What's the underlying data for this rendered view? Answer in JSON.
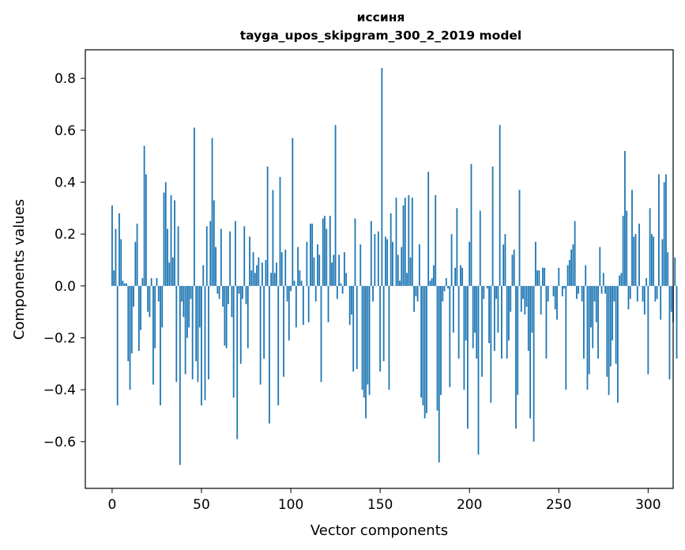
{
  "chart_data": {
    "type": "bar",
    "title": "иссиня",
    "subtitle": "tayga_upos_skipgram_300_2_2019 model",
    "xlabel": "Vector components",
    "ylabel": "Components values",
    "xlim": [
      -15,
      314
    ],
    "ylim": [
      -0.78,
      0.91
    ],
    "xticks": [
      0,
      50,
      100,
      150,
      200,
      250,
      300
    ],
    "xtick_labels": [
      "0",
      "50",
      "100",
      "150",
      "200",
      "250",
      "300"
    ],
    "yticks": [
      -0.6,
      -0.4,
      -0.2,
      0.0,
      0.2,
      0.4,
      0.6,
      0.8
    ],
    "ytick_labels": [
      "−0.6",
      "−0.4",
      "−0.2",
      "0.0",
      "0.2",
      "0.4",
      "0.6",
      "0.8"
    ],
    "bar_color": "#1f77b4",
    "grid": false,
    "values": [
      0.31,
      0.06,
      0.22,
      -0.46,
      0.28,
      0.18,
      0.02,
      0.01,
      0.01,
      -0.29,
      -0.4,
      -0.26,
      -0.08,
      0.17,
      0.24,
      -0.25,
      -0.17,
      0.03,
      0.54,
      0.43,
      -0.1,
      -0.12,
      0.03,
      -0.38,
      -0.24,
      0.03,
      -0.06,
      -0.46,
      -0.16,
      0.36,
      0.4,
      0.22,
      0.09,
      0.35,
      0.11,
      0.33,
      -0.37,
      0.23,
      -0.69,
      -0.06,
      -0.12,
      -0.34,
      -0.2,
      -0.16,
      -0.05,
      -0.36,
      0.61,
      -0.29,
      -0.37,
      -0.16,
      -0.46,
      0.08,
      -0.44,
      0.23,
      -0.36,
      0.25,
      0.57,
      0.33,
      0.15,
      -0.03,
      -0.05,
      0.22,
      -0.08,
      -0.23,
      -0.24,
      -0.07,
      0.21,
      -0.12,
      -0.43,
      0.25,
      -0.59,
      -0.03,
      -0.3,
      -0.05,
      0.23,
      -0.07,
      -0.24,
      0.19,
      0.06,
      0.13,
      0.05,
      0.08,
      0.11,
      -0.38,
      0.09,
      -0.28,
      0.1,
      0.46,
      -0.53,
      0.05,
      0.37,
      0.05,
      0.09,
      -0.46,
      0.42,
      0.13,
      -0.35,
      0.14,
      -0.06,
      -0.21,
      -0.02,
      0.57,
      0.02,
      -0.16,
      0.15,
      0.06,
      0.02,
      -0.15,
      0.0,
      0.17,
      -0.14,
      0.24,
      0.24,
      0.11,
      -0.06,
      0.16,
      0.12,
      -0.37,
      0.26,
      0.27,
      0.22,
      -0.14,
      0.27,
      0.09,
      0.12,
      0.62,
      -0.05,
      0.12,
      0.01,
      -0.03,
      0.13,
      0.05,
      0.0,
      -0.15,
      -0.11,
      -0.33,
      0.26,
      -0.32,
      0.0,
      0.16,
      -0.4,
      -0.43,
      -0.51,
      -0.38,
      -0.42,
      0.25,
      -0.06,
      0.2,
      0.0,
      0.21,
      -0.33,
      0.84,
      -0.29,
      0.19,
      0.18,
      -0.4,
      0.28,
      0.17,
      0.0,
      0.34,
      0.12,
      0.02,
      0.15,
      0.31,
      0.34,
      0.05,
      0.35,
      0.11,
      0.34,
      -0.1,
      -0.04,
      -0.06,
      0.16,
      -0.43,
      -0.46,
      -0.51,
      -0.49,
      0.44,
      0.02,
      0.03,
      0.08,
      0.35,
      -0.48,
      -0.68,
      -0.42,
      -0.06,
      -0.02,
      0.03,
      -0.01,
      -0.39,
      0.2,
      -0.18,
      0.07,
      0.3,
      -0.28,
      0.08,
      0.07,
      -0.4,
      -0.21,
      -0.55,
      0.17,
      0.47,
      -0.24,
      -0.18,
      -0.28,
      -0.65,
      0.29,
      -0.35,
      -0.05,
      0.0,
      -0.01,
      -0.22,
      -0.45,
      0.46,
      -0.25,
      -0.05,
      -0.18,
      0.62,
      -0.28,
      0.16,
      0.2,
      -0.28,
      -0.21,
      -0.1,
      0.12,
      0.14,
      -0.55,
      -0.42,
      0.37,
      -0.1,
      -0.05,
      -0.11,
      -0.08,
      -0.25,
      -0.51,
      -0.18,
      -0.6,
      0.17,
      0.06,
      0.06,
      -0.11,
      0.07,
      0.07,
      -0.28,
      -0.06,
      0.0,
      0.0,
      -0.04,
      -0.09,
      -0.13,
      0.07,
      0.0,
      -0.04,
      -0.01,
      -0.4,
      0.08,
      0.1,
      0.14,
      0.16,
      0.25,
      -0.05,
      -0.03,
      0.0,
      -0.06,
      -0.28,
      0.08,
      -0.4,
      -0.34,
      -0.16,
      -0.24,
      -0.06,
      -0.14,
      -0.28,
      0.15,
      -0.03,
      0.05,
      -0.03,
      -0.35,
      -0.42,
      -0.31,
      -0.21,
      -0.06,
      -0.3,
      -0.45,
      0.04,
      0.05,
      0.27,
      0.52,
      0.29,
      -0.09,
      -0.05,
      0.37,
      0.19,
      0.2,
      -0.06,
      0.24,
      0.0,
      -0.06,
      -0.11,
      0.03,
      -0.34,
      0.3,
      0.2,
      0.19,
      -0.06,
      -0.05,
      0.43,
      -0.13,
      0.18,
      0.4,
      0.43,
      0.13,
      -0.36,
      -0.1,
      -0.14,
      0.11,
      -0.28
    ]
  }
}
